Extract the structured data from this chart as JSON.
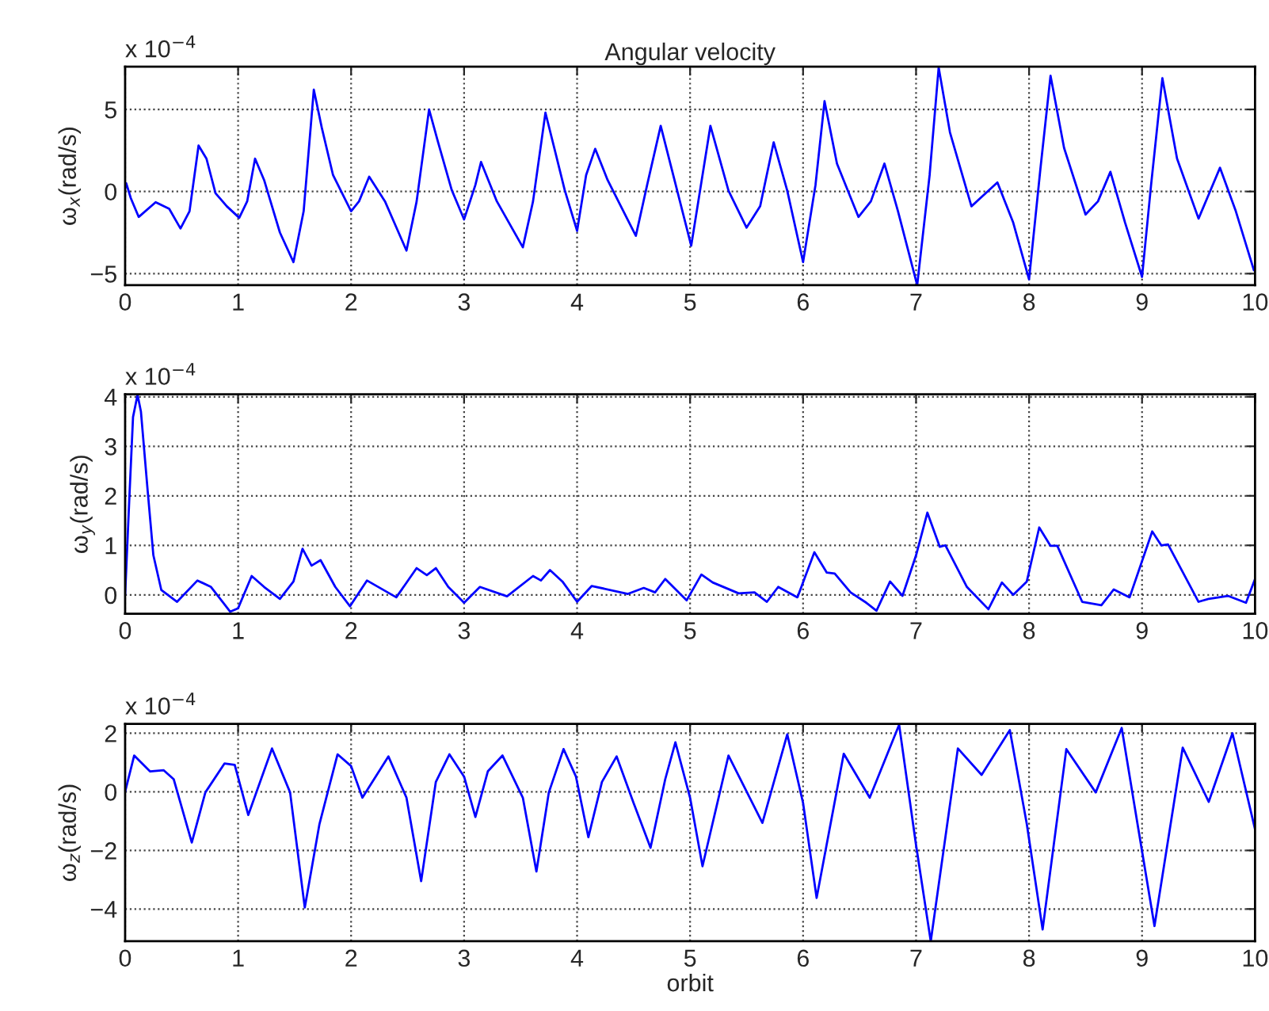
{
  "chart_data": [
    {
      "type": "line",
      "title": "Angular velocity",
      "ylabel": "ω$_{x}$(rad/s)",
      "annotations": [
        "x 10$^{−4}$"
      ],
      "xlim": [
        0,
        10
      ],
      "xticks": [
        0,
        1,
        2,
        3,
        4,
        5,
        6,
        7,
        8,
        9,
        10
      ],
      "ylim": [
        -5.7,
        7.6
      ],
      "yticks": [
        -5,
        0,
        5
      ],
      "grid": true,
      "marker": "none",
      "line_style": "solid",
      "series": [
        {
          "color": "#0000ff",
          "x": [
            0,
            0.01,
            0.05,
            0.12,
            0.27,
            0.39,
            0.49,
            0.57,
            0.65,
            0.72,
            0.8,
            0.9,
            1.01,
            1.08,
            1.15,
            1.23,
            1.37,
            1.49,
            1.58,
            1.67,
            1.74,
            1.84,
            2.0,
            2.07,
            2.16,
            2.3,
            2.49,
            2.58,
            2.69,
            2.77,
            2.89,
            3.0,
            3.1,
            3.15,
            3.29,
            3.52,
            3.61,
            3.72,
            3.8,
            3.89,
            4.0,
            4.08,
            4.16,
            4.27,
            4.52,
            4.62,
            4.74,
            5.01,
            5.18,
            5.34,
            5.5,
            5.62,
            5.74,
            5.86,
            6.0,
            6.11,
            6.19,
            6.3,
            6.49,
            6.6,
            6.72,
            6.84,
            7.01,
            7.12,
            7.2,
            7.3,
            7.49,
            7.72,
            7.86,
            8.0,
            8.1,
            8.19,
            8.31,
            8.5,
            8.61,
            8.72,
            8.85,
            9.0,
            9.08,
            9.18,
            9.31,
            9.5,
            9.69,
            9.83,
            9.99
          ],
          "values": [
            0.2,
            0.5,
            -0.4,
            -1.55,
            -0.65,
            -1.05,
            -2.25,
            -1.2,
            2.8,
            2.0,
            -0.1,
            -0.9,
            -1.6,
            -0.6,
            2.0,
            0.7,
            -2.5,
            -4.3,
            -1.2,
            6.2,
            3.9,
            1.0,
            -1.2,
            -0.6,
            0.9,
            -0.6,
            -3.6,
            -0.6,
            5.0,
            3.0,
            0.1,
            -1.7,
            0.4,
            1.8,
            -0.6,
            -3.4,
            -0.6,
            4.8,
            2.6,
            0.1,
            -2.4,
            1.0,
            2.6,
            0.7,
            -2.7,
            0.4,
            4.0,
            -3.3,
            4.0,
            0.05,
            -2.2,
            -0.9,
            3.0,
            0.05,
            -4.3,
            0.4,
            5.5,
            1.7,
            -1.55,
            -0.6,
            1.7,
            -1.2,
            -5.7,
            1.0,
            7.55,
            3.6,
            -0.9,
            0.55,
            -1.9,
            -5.35,
            1.35,
            7.05,
            2.65,
            -1.4,
            -0.6,
            1.2,
            -1.9,
            -5.2,
            0.4,
            6.9,
            2.0,
            -1.65,
            1.45,
            -1.2,
            -4.8
          ]
        }
      ]
    },
    {
      "type": "line",
      "ylabel": "ω$_{y}$(rad/s)",
      "annotations": [
        "x 10$^{−4}$"
      ],
      "xlim": [
        0,
        10
      ],
      "xticks": [
        0,
        1,
        2,
        3,
        4,
        5,
        6,
        7,
        8,
        9,
        10
      ],
      "ylim": [
        -0.38,
        4.05
      ],
      "yticks": [
        0,
        1,
        2,
        3,
        4
      ],
      "grid": true,
      "marker": "none",
      "line_style": "solid",
      "series": [
        {
          "color": "#0000ff",
          "x": [
            0,
            0.04,
            0.07,
            0.11,
            0.14,
            0.2,
            0.25,
            0.32,
            0.46,
            0.64,
            0.76,
            0.93,
            1.0,
            1.12,
            1.23,
            1.37,
            1.49,
            1.57,
            1.65,
            1.73,
            1.86,
            1.99,
            2.14,
            2.4,
            2.58,
            2.67,
            2.75,
            2.86,
            3.0,
            3.14,
            3.38,
            3.61,
            3.68,
            3.76,
            3.87,
            4.0,
            4.13,
            4.45,
            4.59,
            4.69,
            4.78,
            4.97,
            5.1,
            5.2,
            5.43,
            5.57,
            5.68,
            5.78,
            5.95,
            6.1,
            6.21,
            6.28,
            6.42,
            6.56,
            6.65,
            6.77,
            6.88,
            7.0,
            7.1,
            7.21,
            7.26,
            7.45,
            7.64,
            7.76,
            7.86,
            7.98,
            8.09,
            8.19,
            8.25,
            8.47,
            8.64,
            8.75,
            8.89,
            9.09,
            9.17,
            9.23,
            9.5,
            9.59,
            9.76,
            9.92,
            10.0
          ],
          "values": [
            0,
            2.09,
            3.59,
            4.04,
            3.7,
            2.09,
            0.8,
            0.1,
            -0.14,
            0.29,
            0.16,
            -0.34,
            -0.27,
            0.38,
            0.16,
            -0.08,
            0.27,
            0.93,
            0.59,
            0.7,
            0.16,
            -0.23,
            0.29,
            -0.05,
            0.54,
            0.4,
            0.54,
            0.16,
            -0.16,
            0.16,
            -0.03,
            0.38,
            0.29,
            0.5,
            0.27,
            -0.14,
            0.18,
            0.02,
            0.14,
            0.05,
            0.32,
            -0.11,
            0.41,
            0.25,
            0.03,
            0.05,
            -0.14,
            0.16,
            -0.05,
            0.86,
            0.45,
            0.43,
            0.05,
            -0.16,
            -0.32,
            0.27,
            -0.02,
            0.8,
            1.66,
            0.97,
            1.0,
            0.16,
            -0.29,
            0.25,
            0,
            0.27,
            1.36,
            0.99,
            0.99,
            -0.14,
            -0.21,
            0.11,
            -0.05,
            1.28,
            1.0,
            1.02,
            -0.14,
            -0.08,
            -0.02,
            -0.16,
            0.32
          ]
        }
      ]
    },
    {
      "type": "line",
      "ylabel": "ω$_{z}$(rad/s)",
      "xlabel": "orbit",
      "annotations": [
        "x 10$^{−4}$"
      ],
      "xlim": [
        0,
        10
      ],
      "xticks": [
        0,
        1,
        2,
        3,
        4,
        5,
        6,
        7,
        8,
        9,
        10
      ],
      "ylim": [
        -5.1,
        2.32
      ],
      "yticks": [
        -4,
        -2,
        0,
        2
      ],
      "grid": true,
      "marker": "none",
      "line_style": "solid",
      "series": [
        {
          "color": "#0000ff",
          "x": [
            0,
            0.08,
            0.22,
            0.34,
            0.43,
            0.59,
            0.71,
            0.88,
            0.97,
            1.09,
            1.3,
            1.46,
            1.59,
            1.72,
            1.88,
            2.0,
            2.1,
            2.33,
            2.49,
            2.62,
            2.75,
            2.87,
            3.0,
            3.1,
            3.21,
            3.34,
            3.52,
            3.64,
            3.75,
            3.88,
            3.99,
            4.1,
            4.22,
            4.35,
            4.5,
            4.65,
            4.78,
            4.87,
            5.0,
            5.11,
            5.34,
            5.64,
            5.86,
            6.0,
            6.12,
            6.36,
            6.59,
            6.85,
            7.0,
            7.13,
            7.37,
            7.58,
            7.83,
            7.98,
            8.12,
            8.33,
            8.59,
            8.82,
            8.96,
            9.11,
            9.36,
            9.59,
            9.8,
            10.0
          ],
          "values": [
            0,
            1.24,
            0.7,
            0.74,
            0.43,
            -1.73,
            -0.02,
            0.97,
            0.92,
            -0.79,
            1.48,
            -0.02,
            -3.95,
            -1.1,
            1.28,
            0.88,
            -0.2,
            1.21,
            -0.2,
            -3.05,
            0.34,
            1.28,
            0.52,
            -0.86,
            0.7,
            1.24,
            -0.2,
            -2.72,
            -0.02,
            1.46,
            0.52,
            -1.55,
            0.34,
            1.21,
            -0.38,
            -1.91,
            0.43,
            1.69,
            -0.2,
            -2.54,
            1.24,
            -1.06,
            1.96,
            -0.38,
            -3.62,
            1.3,
            -0.2,
            2.29,
            -1.82,
            -5.1,
            1.48,
            0.58,
            2.11,
            -1.1,
            -4.7,
            1.46,
            -0.02,
            2.18,
            -1.1,
            -4.58,
            1.51,
            -0.34,
            2.0,
            -1.28
          ]
        }
      ]
    }
  ]
}
